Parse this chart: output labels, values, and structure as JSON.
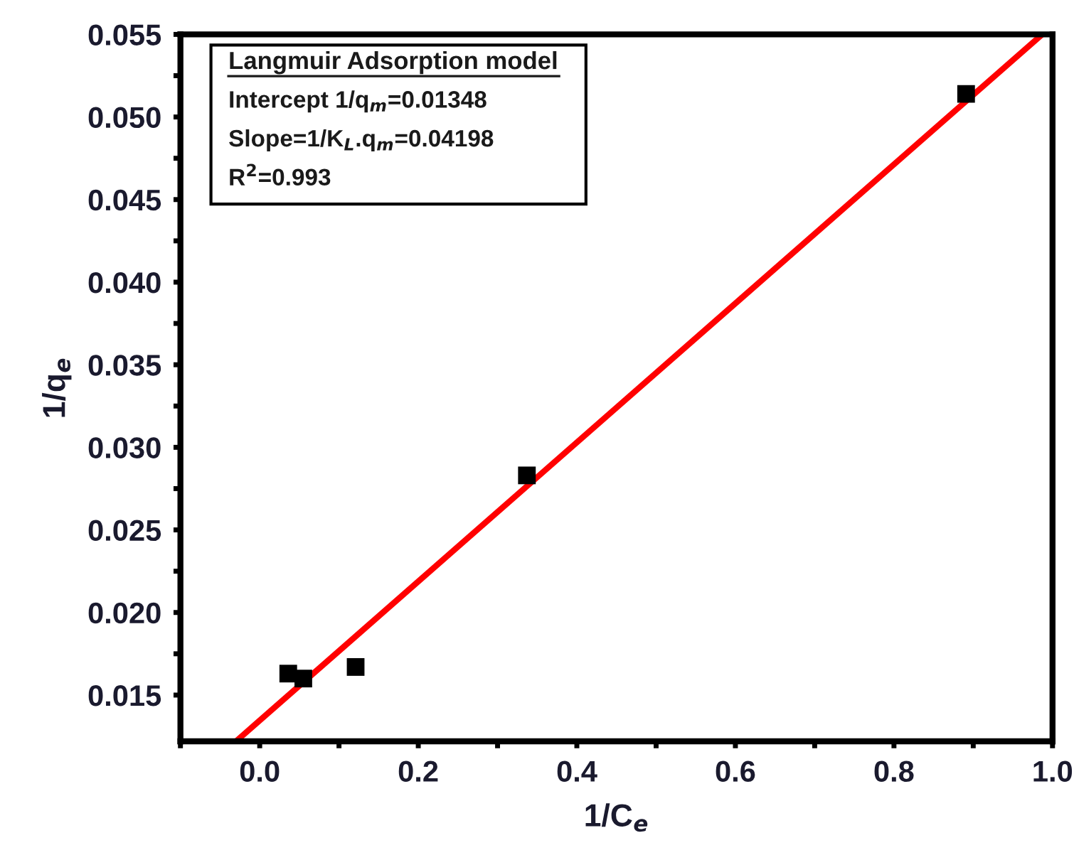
{
  "chart_data": {
    "type": "scatter",
    "xlabel": "1/C$_{e}$",
    "ylabel": "1/q$_{e}$",
    "xlim": [
      -0.1,
      1.0
    ],
    "ylim": [
      0.0122,
      0.055
    ],
    "xticks": [
      {
        "value": -0.1,
        "label": null
      },
      "0.0",
      {
        "value": 0.1,
        "label": null
      },
      {
        "value": 0.2,
        "label": "0.2"
      },
      {
        "value": 0.3,
        "label": null
      },
      {
        "value": 0.4,
        "label": "0.4"
      },
      {
        "value": 0.5,
        "label": null
      },
      {
        "value": 0.6,
        "label": "0.6"
      },
      {
        "value": 0.7,
        "label": null
      },
      {
        "value": 0.8,
        "label": "0.8"
      },
      {
        "value": 0.9,
        "label": null
      },
      {
        "value": 1.0,
        "label": "1.0"
      }
    ],
    "yticks": [
      {
        "value": 0.015,
        "label": "0.015"
      },
      {
        "value": 0.0175,
        "label": null
      },
      {
        "value": 0.02,
        "label": "0.020"
      },
      {
        "value": 0.0225,
        "label": null
      },
      {
        "value": 0.025,
        "label": "0.025"
      },
      {
        "value": 0.0275,
        "label": null
      },
      {
        "value": 0.03,
        "label": "0.030"
      },
      {
        "value": 0.0325,
        "label": null
      },
      {
        "value": 0.035,
        "label": "0.035"
      },
      {
        "value": 0.0375,
        "label": null
      },
      {
        "value": 0.04,
        "label": "0.040"
      },
      {
        "value": 0.0425,
        "label": null
      },
      {
        "value": 0.045,
        "label": "0.045"
      },
      {
        "value": 0.0475,
        "label": null
      },
      {
        "value": 0.05,
        "label": "0.050"
      },
      {
        "value": 0.0525,
        "label": null
      },
      {
        "value": 0.055,
        "label": "0.055"
      }
    ],
    "grid": false,
    "series": [
      {
        "color": "#000000",
        "marker": "square",
        "x": [
          0.036,
          0.055,
          0.121,
          0.337,
          0.891
        ],
        "values": [
          0.0163,
          0.016,
          0.0167,
          0.0283,
          0.0514
        ]
      },
      {
        "type": "line",
        "color": "#ff0000",
        "marker": "none",
        "line_style": "solid",
        "x": [
          -0.03,
          0.987
        ],
        "values": [
          0.0122,
          0.055
        ]
      }
    ],
    "annotations": [
      "Langmuir Adsorption model",
      "Intercept 1/q$_{m}$=0.01348",
      "Slope=1/K$_{L}$.q$_{m}$=0.04198",
      "R$^{2}$=0.993"
    ]
  }
}
